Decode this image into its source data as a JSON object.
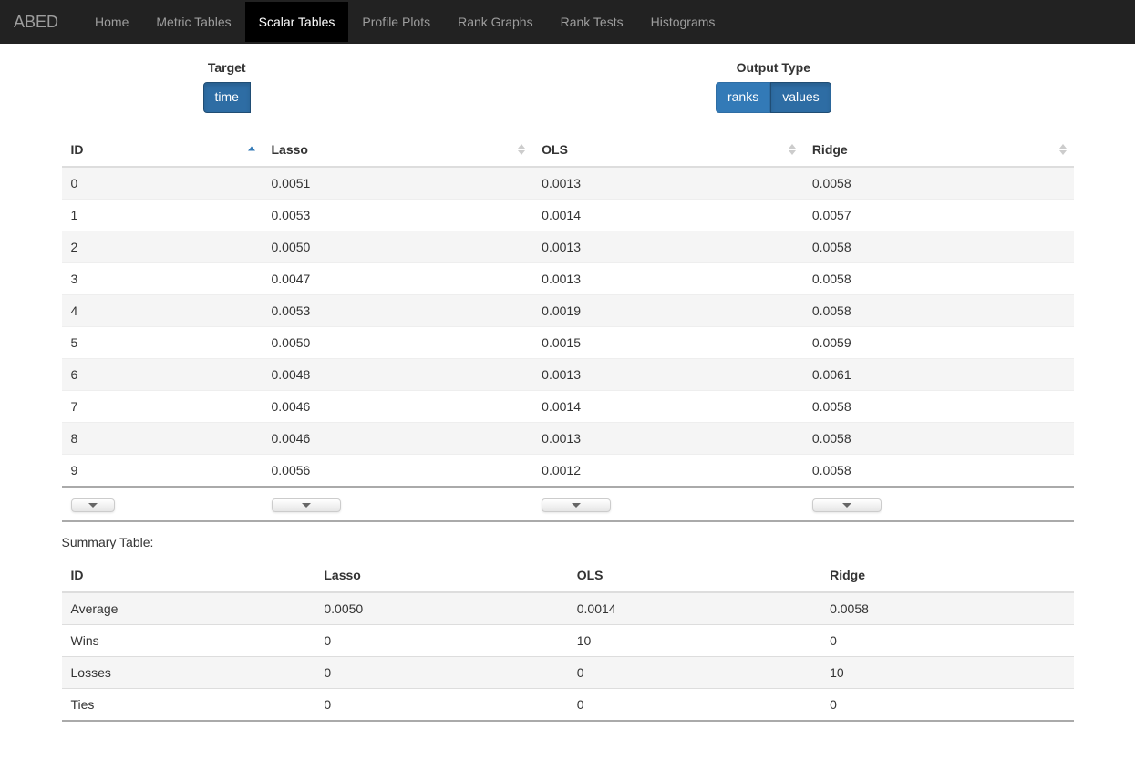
{
  "nav": {
    "brand": "ABED",
    "items": [
      {
        "label": "Home",
        "active": false
      },
      {
        "label": "Metric Tables",
        "active": false
      },
      {
        "label": "Scalar Tables",
        "active": true
      },
      {
        "label": "Profile Plots",
        "active": false
      },
      {
        "label": "Rank Graphs",
        "active": false
      },
      {
        "label": "Rank Tests",
        "active": false
      },
      {
        "label": "Histograms",
        "active": false
      }
    ]
  },
  "controls": {
    "target": {
      "label": "Target",
      "buttons": [
        {
          "label": "time",
          "active": true
        }
      ]
    },
    "output": {
      "label": "Output Type",
      "buttons": [
        {
          "label": "ranks",
          "active": false
        },
        {
          "label": "values",
          "active": true
        }
      ]
    }
  },
  "table": {
    "columns": [
      "ID",
      "Lasso",
      "OLS",
      "Ridge"
    ],
    "sorted_col": 0,
    "sort_dir": "asc",
    "rows": [
      [
        "0",
        "0.0051",
        "0.0013",
        "0.0058"
      ],
      [
        "1",
        "0.0053",
        "0.0014",
        "0.0057"
      ],
      [
        "2",
        "0.0050",
        "0.0013",
        "0.0058"
      ],
      [
        "3",
        "0.0047",
        "0.0013",
        "0.0058"
      ],
      [
        "4",
        "0.0053",
        "0.0019",
        "0.0058"
      ],
      [
        "5",
        "0.0050",
        "0.0015",
        "0.0059"
      ],
      [
        "6",
        "0.0048",
        "0.0013",
        "0.0061"
      ],
      [
        "7",
        "0.0046",
        "0.0014",
        "0.0058"
      ],
      [
        "8",
        "0.0046",
        "0.0013",
        "0.0058"
      ],
      [
        "9",
        "0.0056",
        "0.0012",
        "0.0058"
      ]
    ]
  },
  "summary": {
    "label": "Summary Table:",
    "columns": [
      "ID",
      "Lasso",
      "OLS",
      "Ridge"
    ],
    "rows": [
      [
        "Average",
        "0.0050",
        "0.0014",
        "0.0058"
      ],
      [
        "Wins",
        "0",
        "10",
        "0"
      ],
      [
        "Losses",
        "0",
        "0",
        "10"
      ],
      [
        "Ties",
        "0",
        "0",
        "0"
      ]
    ]
  }
}
